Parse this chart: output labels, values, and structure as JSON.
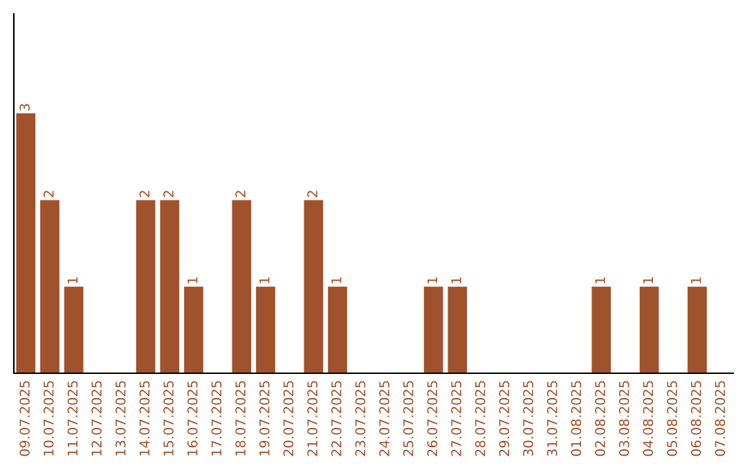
{
  "chart_data": {
    "type": "bar",
    "categories": [
      "09.07.2025",
      "10.07.2025",
      "11.07.2025",
      "12.07.2025",
      "13.07.2025",
      "14.07.2025",
      "15.07.2025",
      "16.07.2025",
      "17.07.2025",
      "18.07.2025",
      "19.07.2025",
      "20.07.2025",
      "21.07.2025",
      "22.07.2025",
      "23.07.2025",
      "24.07.2025",
      "25.07.2025",
      "26.07.2025",
      "27.07.2025",
      "28.07.2025",
      "29.07.2025",
      "30.07.2025",
      "31.07.2025",
      "01.08.2025",
      "02.08.2025",
      "03.08.2025",
      "04.08.2025",
      "05.08.2025",
      "06.08.2025",
      "07.08.2025"
    ],
    "values": [
      3,
      2,
      1,
      0,
      0,
      2,
      2,
      1,
      0,
      2,
      1,
      0,
      2,
      1,
      0,
      0,
      0,
      1,
      1,
      0,
      0,
      0,
      0,
      0,
      1,
      0,
      1,
      0,
      1,
      0
    ],
    "value_labels": [
      "3",
      "2",
      "1",
      null,
      null,
      "2",
      "2",
      "1",
      null,
      "2",
      "1",
      null,
      "2",
      "1",
      null,
      null,
      null,
      "1",
      "1",
      null,
      null,
      null,
      null,
      null,
      "1",
      null,
      "1",
      null,
      "1",
      null
    ],
    "color": "#a0522d",
    "ylim": [
      0,
      4.15
    ],
    "tick_labels": "x",
    "grid": false,
    "legend": false
  }
}
